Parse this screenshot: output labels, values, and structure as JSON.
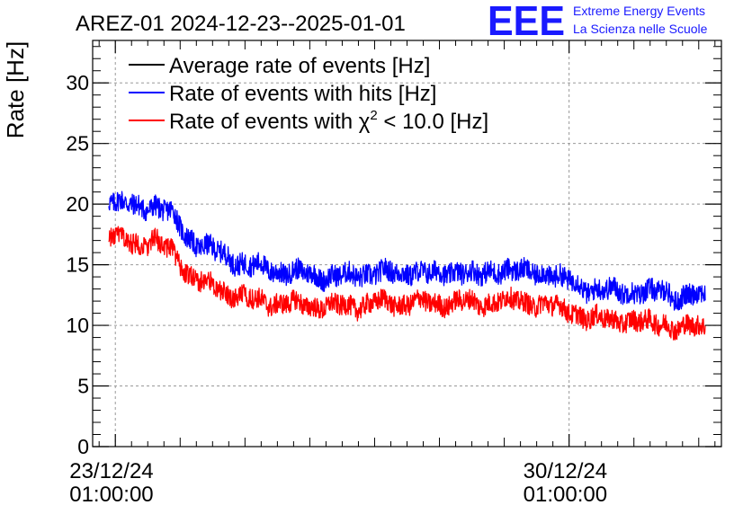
{
  "chart_data": {
    "type": "line",
    "title": "AREZ-01 2024-12-23--2025-01-01",
    "xlabel": "",
    "ylabel": "Rate [Hz]",
    "ylim": [
      0,
      33.5
    ],
    "yticks": [
      0,
      5,
      10,
      15,
      20,
      25,
      30
    ],
    "xlim_days_from_2024_12_23_01h": [
      -0.35,
      9.35
    ],
    "xticks": [
      {
        "day": 0,
        "date": "23/12/24",
        "time": "01:00:00"
      },
      {
        "day": 7,
        "date": "30/12/24",
        "time": "01:00:00"
      }
    ],
    "grid": true,
    "legend": {
      "placement": "top-left",
      "entries": [
        {
          "label": "Average rate of events [Hz]",
          "color": "#000000"
        },
        {
          "label": "Rate of events with hits [Hz]",
          "color": "#0000ff"
        },
        {
          "label_prefix": "Rate of events with ",
          "chi": "χ",
          "sup": "2",
          "label_suffix": " < 10.0 [Hz]",
          "color": "#ff0000"
        }
      ]
    },
    "series": [
      {
        "name": "Rate of events with hits [Hz]",
        "color": "#0000ff",
        "x_days": [
          -0.1,
          0.0,
          0.3,
          0.6,
          0.9,
          1.1,
          1.3,
          1.6,
          2.0,
          2.4,
          2.8,
          3.2,
          3.6,
          4.0,
          4.4,
          4.6,
          4.9,
          5.3,
          5.6,
          5.9,
          6.3,
          6.6,
          6.9,
          7.1,
          7.3,
          7.6,
          7.9,
          8.2,
          8.5,
          8.7,
          8.9,
          9.1
        ],
        "values": [
          20.6,
          20.1,
          19.8,
          19.9,
          19.0,
          17.4,
          16.6,
          16.0,
          15.0,
          14.6,
          14.3,
          14.1,
          14.0,
          14.4,
          14.2,
          14.6,
          14.1,
          14.6,
          14.0,
          14.7,
          14.3,
          14.5,
          13.7,
          13.6,
          13.0,
          12.8,
          12.9,
          12.6,
          12.9,
          12.2,
          12.5,
          12.4
        ],
        "noise": 0.9
      },
      {
        "name": "Rate of events with χ2 < 10.0 [Hz]",
        "color": "#ff0000",
        "x_days": [
          -0.1,
          0.0,
          0.3,
          0.6,
          0.9,
          1.1,
          1.3,
          1.6,
          2.0,
          2.4,
          2.8,
          3.2,
          3.6,
          4.0,
          4.4,
          4.6,
          4.9,
          5.3,
          5.6,
          5.9,
          6.3,
          6.6,
          6.9,
          7.1,
          7.3,
          7.6,
          7.9,
          8.2,
          8.5,
          8.7,
          8.9,
          9.1
        ],
        "values": [
          17.5,
          17.1,
          16.8,
          16.9,
          16.0,
          14.4,
          13.6,
          13.0,
          12.2,
          11.9,
          11.7,
          11.6,
          11.5,
          11.9,
          11.7,
          12.1,
          11.6,
          12.1,
          11.6,
          12.2,
          11.8,
          11.9,
          11.2,
          11.1,
          10.6,
          10.4,
          10.5,
          10.1,
          10.3,
          9.6,
          9.9,
          9.9
        ],
        "noise": 0.85
      }
    ]
  },
  "logo": {
    "mark": "EEE",
    "line1": "Extreme Energy Events",
    "line2": "La Scienza nelle Scuole"
  },
  "colors": {
    "axis": "#000000",
    "grid": "#999999",
    "logo": "#1a1aff"
  }
}
